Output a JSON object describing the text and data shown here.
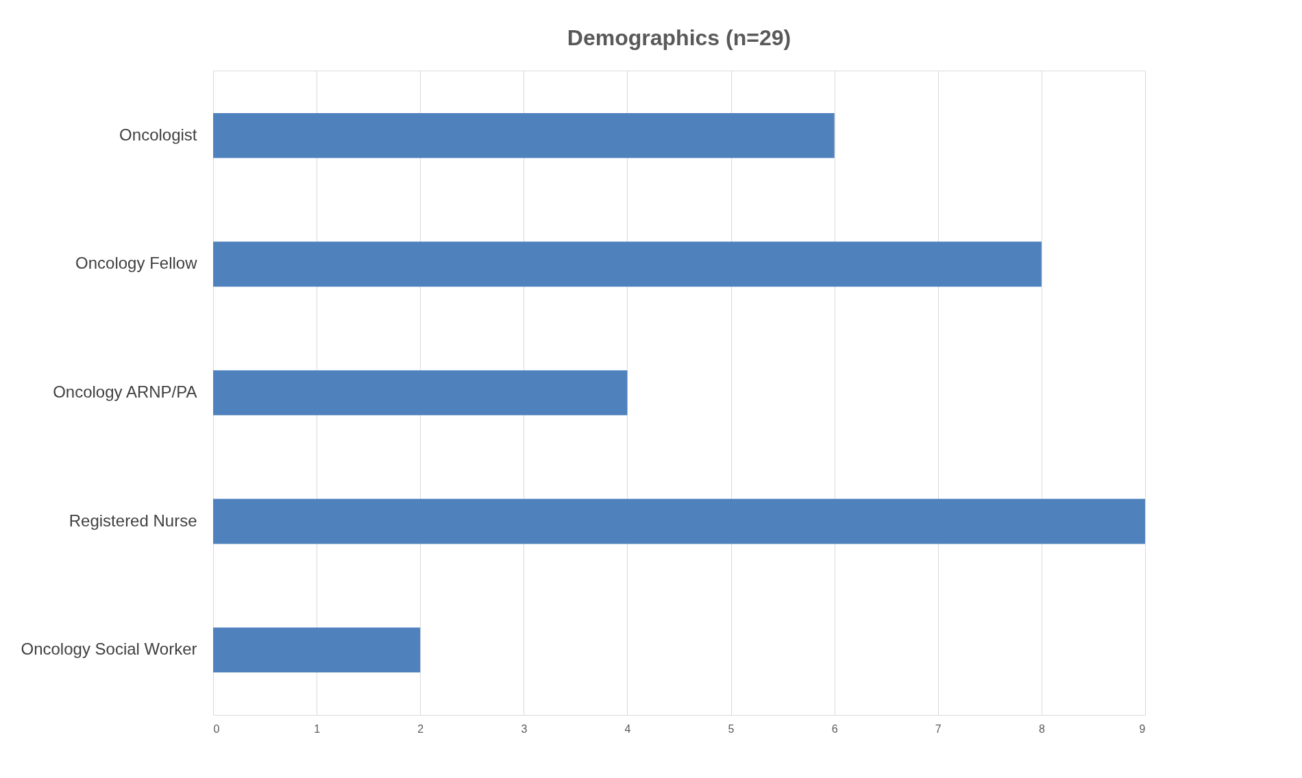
{
  "chart_data": {
    "type": "bar",
    "orientation": "horizontal",
    "title": "Demographics (n=29)",
    "categories": [
      "Oncologist",
      "Oncology Fellow",
      "Oncology ARNP/PA",
      "Registered Nurse",
      "Oncology Social Worker"
    ],
    "values": [
      6,
      8,
      4,
      9,
      2
    ],
    "color": "#4f81bd",
    "xlim": [
      0,
      9
    ],
    "xticks": [
      0,
      1,
      2,
      3,
      4,
      5,
      6,
      7,
      8,
      9
    ],
    "grid": "x"
  }
}
